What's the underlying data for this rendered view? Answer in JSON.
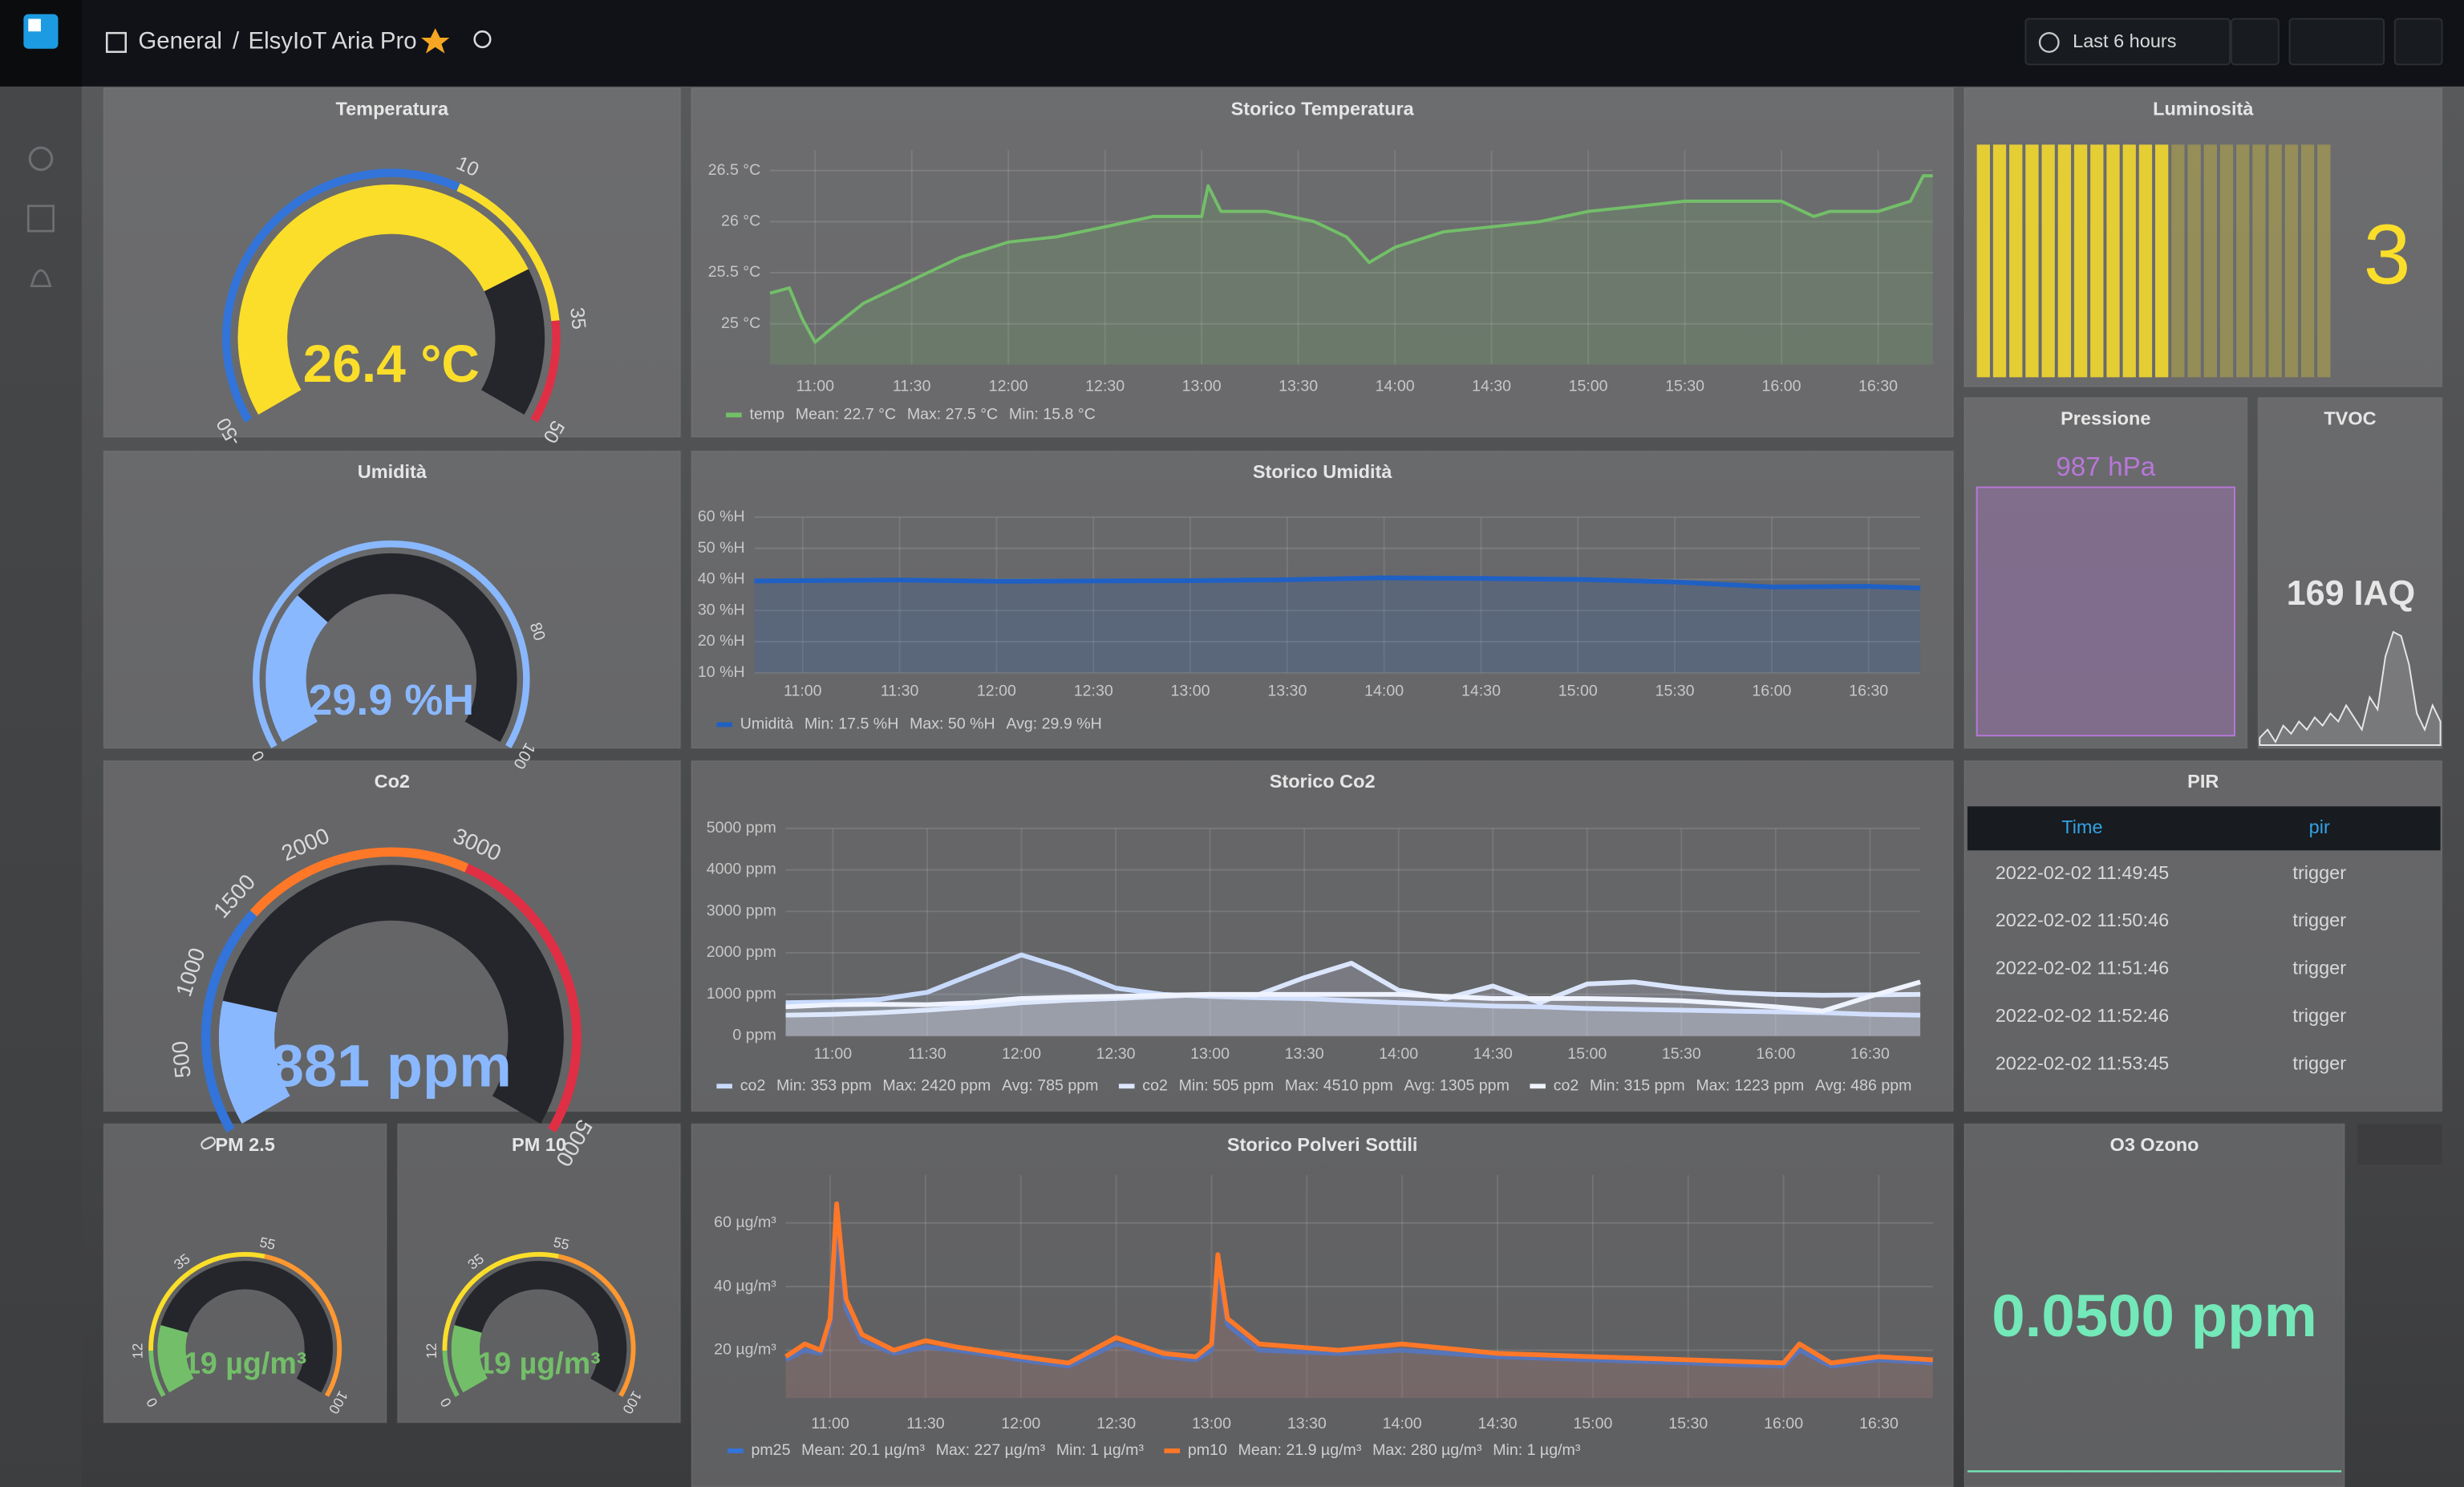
{
  "header": {
    "breadcrumb_root": "General",
    "separator": "/",
    "dashboard": "ElsyIoT Aria Pro",
    "time_range": "Last 6 hours"
  },
  "panels": {
    "temperatura": {
      "title": "Temperatura",
      "value": 26.4,
      "value_label": "26.4 °C",
      "color": "#fade2a",
      "ticks": [
        -50,
        10,
        35,
        50
      ],
      "band_colors": [
        "#3274d9",
        "#fade2a",
        "#e02f44"
      ]
    },
    "umidita": {
      "title": "Umidità",
      "value": 29.9,
      "value_label": "29.9 %H",
      "color": "#8ab8ff",
      "ticks": [
        0,
        80,
        100
      ],
      "band_colors": [
        "#8ab8ff",
        "#8ab8ff"
      ]
    },
    "co2": {
      "title": "Co2",
      "value": 881,
      "value_label": "881 ppm",
      "color": "#8ab8ff",
      "ticks": [
        0,
        500,
        1000,
        1500,
        2000,
        3000,
        5000
      ],
      "band_colors": [
        "#3274d9",
        "#3274d9",
        "#3274d9",
        "#ff7828",
        "#ff7828",
        "#e02f44"
      ]
    },
    "pm25": {
      "title": "PM 2.5",
      "value": 19,
      "value_label": "19 µg/m³",
      "color": "#73bf69",
      "ticks": [
        0,
        12,
        35,
        55,
        100
      ],
      "band_colors": [
        "#73bf69",
        "#fade2a",
        "#fade2a",
        "#ff9830"
      ]
    },
    "pm10": {
      "title": "PM 10",
      "value": 19,
      "value_label": "19 µg/m³",
      "color": "#73bf69",
      "ticks": [
        0,
        12,
        35,
        55,
        100
      ],
      "band_colors": [
        "#73bf69",
        "#fade2a",
        "#fade2a",
        "#ff9830"
      ]
    },
    "storico_temperatura": {
      "title": "Storico Temperatura",
      "xlim": [
        "10:46",
        "16:47"
      ],
      "xticks": [
        "11:00",
        "11:30",
        "12:00",
        "12:30",
        "13:00",
        "13:30",
        "14:00",
        "14:30",
        "15:00",
        "15:30",
        "16:00",
        "16:30"
      ],
      "ylim": [
        24.6,
        26.7
      ],
      "yticks": [
        {
          "value": 25,
          "label": "25 °C"
        },
        {
          "value": 25.5,
          "label": "25.5 °C"
        },
        {
          "value": 26,
          "label": "26 °C"
        },
        {
          "value": 26.5,
          "label": "26.5 °C"
        }
      ],
      "x": [
        "10:46",
        "10:52",
        "10:56",
        "11:00",
        "11:05",
        "11:15",
        "11:25",
        "11:35",
        "11:45",
        "12:00",
        "12:15",
        "12:30",
        "12:45",
        "13:00",
        "13:02",
        "13:06",
        "13:20",
        "13:35",
        "13:45",
        "13:52",
        "14:00",
        "14:15",
        "14:30",
        "14:45",
        "15:00",
        "15:15",
        "15:30",
        "16:00",
        "16:10",
        "16:15",
        "16:30",
        "16:40",
        "16:44",
        "16:47"
      ],
      "series": [
        {
          "name": "temp",
          "color": "#73bf69",
          "stats": [
            "Mean: 22.7 °C",
            "Max: 27.5 °C",
            "Min: 15.8 °C"
          ],
          "values": [
            25.3,
            25.35,
            25.05,
            24.82,
            24.95,
            25.2,
            25.35,
            25.5,
            25.65,
            25.8,
            25.85,
            25.95,
            26.05,
            26.05,
            26.35,
            26.1,
            26.1,
            26.0,
            25.85,
            25.6,
            25.75,
            25.9,
            25.95,
            26.0,
            26.1,
            26.15,
            26.2,
            26.2,
            26.05,
            26.1,
            26.1,
            26.2,
            26.45,
            26.45
          ]
        }
      ]
    },
    "storico_umidita": {
      "title": "Storico Umidità",
      "xlim": [
        "10:45",
        "16:46"
      ],
      "xticks": [
        "11:00",
        "11:30",
        "12:00",
        "12:30",
        "13:00",
        "13:30",
        "14:00",
        "14:30",
        "15:00",
        "15:30",
        "16:00",
        "16:30"
      ],
      "ylim": [
        10,
        60
      ],
      "yticks": [
        {
          "value": 10,
          "label": "10 %H"
        },
        {
          "value": 20,
          "label": "20 %H"
        },
        {
          "value": 30,
          "label": "30 %H"
        },
        {
          "value": 40,
          "label": "40 %H"
        },
        {
          "value": 50,
          "label": "50 %H"
        },
        {
          "value": 60,
          "label": "60 %H"
        }
      ],
      "x": [
        "10:45",
        "11:00",
        "11:30",
        "12:00",
        "12:30",
        "13:00",
        "13:30",
        "14:00",
        "14:30",
        "15:00",
        "15:30",
        "16:00",
        "16:30",
        "16:46"
      ],
      "series": [
        {
          "name": "Umidità",
          "color": "#1f60c4",
          "stats": [
            "Min: 17.5 %H",
            "Max: 50 %H",
            "Avg: 29.9 %H"
          ],
          "values": [
            39.5,
            39.6,
            39.8,
            39.4,
            39.5,
            39.6,
            39.9,
            40.5,
            40.3,
            40.0,
            39.2,
            37.6,
            37.8,
            37.2
          ]
        }
      ]
    },
    "storico_co2": {
      "title": "Storico Co2",
      "xlim": [
        "10:45",
        "16:46"
      ],
      "xticks": [
        "11:00",
        "11:30",
        "12:00",
        "12:30",
        "13:00",
        "13:30",
        "14:00",
        "14:30",
        "15:00",
        "15:30",
        "16:00",
        "16:30"
      ],
      "ylim": [
        0,
        5000
      ],
      "yticks": [
        {
          "value": 0,
          "label": "0 ppm"
        },
        {
          "value": 1000,
          "label": "1000 ppm"
        },
        {
          "value": 2000,
          "label": "2000 ppm"
        },
        {
          "value": 3000,
          "label": "3000 ppm"
        },
        {
          "value": 4000,
          "label": "4000 ppm"
        },
        {
          "value": 5000,
          "label": "5000 ppm"
        }
      ],
      "x": [
        "10:45",
        "11:00",
        "11:15",
        "11:30",
        "11:45",
        "12:00",
        "12:15",
        "12:30",
        "12:45",
        "13:00",
        "13:15",
        "13:30",
        "13:45",
        "14:00",
        "14:15",
        "14:30",
        "14:45",
        "15:00",
        "15:15",
        "15:30",
        "15:45",
        "16:00",
        "16:15",
        "16:30",
        "16:46"
      ],
      "series": [
        {
          "name": "co2",
          "color": "#c8dafc",
          "stats": [
            "Min: 353 ppm",
            "Max: 2420 ppm",
            "Avg: 785 ppm"
          ],
          "values": [
            800,
            820,
            880,
            1050,
            1500,
            1950,
            1600,
            1150,
            1000,
            950,
            920,
            900,
            850,
            800,
            760,
            720,
            700,
            660,
            640,
            620,
            600,
            580,
            560,
            520,
            500
          ]
        },
        {
          "name": "co2",
          "color": "#dbe6fd",
          "stats": [
            "Min: 505 ppm",
            "Max: 4510 ppm",
            "Avg: 1305 ppm"
          ],
          "values": [
            500,
            520,
            560,
            620,
            700,
            800,
            860,
            900,
            950,
            1000,
            980,
            1400,
            1750,
            1100,
            900,
            1200,
            800,
            1250,
            1300,
            1150,
            1050,
            1000,
            980,
            990,
            1000
          ]
        },
        {
          "name": "co2",
          "color": "#eef3ff",
          "stats": [
            "Min: 315 ppm",
            "Max: 1223 ppm",
            "Avg: 486 ppm"
          ],
          "values": [
            700,
            750,
            760,
            750,
            800,
            900,
            930,
            950,
            980,
            1000,
            1000,
            1000,
            1000,
            1000,
            950,
            900,
            900,
            900,
            880,
            850,
            780,
            700,
            600,
            950,
            1300
          ]
        }
      ]
    },
    "storico_polveri": {
      "title": "Storico Polveri Sottili",
      "xlim": [
        "10:46",
        "16:47"
      ],
      "xticks": [
        "11:00",
        "11:30",
        "12:00",
        "12:30",
        "13:00",
        "13:30",
        "14:00",
        "14:30",
        "15:00",
        "15:30",
        "16:00",
        "16:30"
      ],
      "ylim": [
        5,
        75
      ],
      "yticks": [
        {
          "value": 20,
          "label": "20 µg/m³"
        },
        {
          "value": 40,
          "label": "40 µg/m³"
        },
        {
          "value": 60,
          "label": "60 µg/m³"
        }
      ],
      "x": [
        "10:46",
        "10:52",
        "10:57",
        "11:00",
        "11:02",
        "11:05",
        "11:10",
        "11:20",
        "11:30",
        "11:40",
        "12:00",
        "12:15",
        "12:30",
        "12:45",
        "12:55",
        "13:00",
        "13:02",
        "13:05",
        "13:15",
        "13:40",
        "14:00",
        "14:30",
        "15:00",
        "15:30",
        "16:00",
        "16:05",
        "16:15",
        "16:30",
        "16:47"
      ],
      "series": [
        {
          "name": "pm25",
          "color": "#3274d9",
          "stats": [
            "Mean: 20.1 µg/m³",
            "Max: 227 µg/m³",
            "Min: 1 µg/m³"
          ],
          "values": [
            17,
            20,
            19,
            28,
            60,
            33,
            23,
            19,
            21,
            20,
            17,
            15,
            22,
            18,
            17,
            20,
            46,
            28,
            20,
            19,
            20,
            18,
            17,
            16,
            15,
            20,
            15,
            17,
            16
          ]
        },
        {
          "name": "pm10",
          "color": "#ff7828",
          "stats": [
            "Mean: 21.9 µg/m³",
            "Max: 280 µg/m³",
            "Min: 1 µg/m³"
          ],
          "values": [
            18,
            22,
            20,
            30,
            66,
            36,
            25,
            20,
            23,
            21,
            18,
            16,
            24,
            19,
            18,
            22,
            50,
            30,
            22,
            20,
            22,
            19,
            18,
            17,
            16,
            22,
            16,
            18,
            17
          ]
        }
      ]
    },
    "luminosita": {
      "title": "Luminosità",
      "value": 3,
      "value_label": "3",
      "color": "#fade2a",
      "lim": [
        0,
        5.5
      ]
    },
    "pressione": {
      "title": "Pressione",
      "value": 987,
      "value_label": "987 hPa",
      "color": "#b877d9"
    },
    "tvoc": {
      "title": "TVOC",
      "value": 169,
      "value_label": "169 IAQ",
      "color": "#e6e6e6",
      "sparkline": [
        60,
        70,
        55,
        75,
        65,
        80,
        70,
        85,
        75,
        90,
        80,
        100,
        85,
        70,
        110,
        95,
        160,
        190,
        185,
        150,
        90,
        70,
        100,
        80
      ]
    },
    "pir": {
      "title": "PIR",
      "columns": [
        "Time",
        "pir"
      ],
      "rows": [
        [
          "2022-02-02 11:49:45",
          "trigger"
        ],
        [
          "2022-02-02 11:50:46",
          "trigger"
        ],
        [
          "2022-02-02 11:51:46",
          "trigger"
        ],
        [
          "2022-02-02 11:52:46",
          "trigger"
        ],
        [
          "2022-02-02 11:53:45",
          "trigger"
        ]
      ]
    },
    "o3": {
      "title": "O3 Ozono",
      "value": 0.05,
      "value_label": "0.0500 ppm",
      "color": "#73e8b8"
    }
  }
}
